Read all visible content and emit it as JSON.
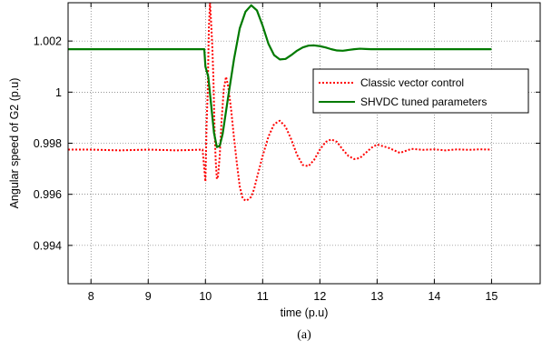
{
  "chart_data": {
    "type": "line",
    "xlabel": "time (p.u)",
    "ylabel": "Angular speed of G2 (p.u)",
    "caption": "(a)",
    "xlim": [
      7.6,
      15.85
    ],
    "ylim": [
      0.9925,
      1.0035
    ],
    "x_ticks": [
      "8",
      "9",
      "10",
      "11",
      "12",
      "13",
      "14",
      "15"
    ],
    "y_ticks": [
      "0.994",
      "0.996",
      "0.998",
      "1",
      "1.002"
    ],
    "x_tick_values": [
      8,
      9,
      10,
      11,
      12,
      13,
      14,
      15
    ],
    "y_tick_values": [
      0.994,
      0.996,
      0.998,
      1.0,
      1.002
    ],
    "grid": true,
    "legend_position": "top-right",
    "series": [
      {
        "name": "Classic vector control",
        "color": "#ff0000",
        "style": "dotted",
        "x": [
          7.6,
          8.0,
          8.5,
          9.0,
          9.5,
          9.95,
          10.0,
          10.02,
          10.04,
          10.06,
          10.08,
          10.1,
          10.12,
          10.14,
          10.16,
          10.18,
          10.2,
          10.22,
          10.25,
          10.28,
          10.32,
          10.36,
          10.4,
          10.45,
          10.5,
          10.55,
          10.6,
          10.65,
          10.7,
          10.75,
          10.8,
          10.85,
          10.9,
          11.0,
          11.1,
          11.2,
          11.3,
          11.4,
          11.5,
          11.6,
          11.7,
          11.8,
          11.9,
          12.0,
          12.1,
          12.2,
          12.3,
          12.4,
          12.5,
          12.6,
          12.7,
          12.8,
          12.9,
          13.0,
          13.2,
          13.4,
          13.6,
          13.8,
          14.0,
          14.2,
          14.4,
          14.6,
          14.8,
          15.0
        ],
        "y": [
          0.99775,
          0.99775,
          0.99772,
          0.99775,
          0.99772,
          0.99775,
          0.9965,
          0.9987,
          1.0,
          1.0025,
          1.0035,
          1.0027,
          1.0018,
          1.0005,
          0.9985,
          0.9973,
          0.9966,
          0.9967,
          0.9975,
          0.9988,
          1.0001,
          1.0006,
          1.0002,
          0.9993,
          0.9982,
          0.9972,
          0.9963,
          0.99585,
          0.99575,
          0.9958,
          0.9959,
          0.9962,
          0.99665,
          0.9975,
          0.99825,
          0.99875,
          0.99888,
          0.99865,
          0.99815,
          0.99755,
          0.99715,
          0.9971,
          0.99735,
          0.99775,
          0.99805,
          0.99815,
          0.99805,
          0.99775,
          0.9975,
          0.99738,
          0.99742,
          0.99762,
          0.99782,
          0.99795,
          0.99782,
          0.99762,
          0.99778,
          0.99774,
          0.99776,
          0.99772,
          0.99776,
          0.99774,
          0.99776,
          0.99775
        ]
      },
      {
        "name": "SHVDC tuned parameters",
        "color": "#007a00",
        "style": "solid",
        "x": [
          7.6,
          8.0,
          9.0,
          9.5,
          9.98,
          10.0,
          10.05,
          10.1,
          10.15,
          10.2,
          10.25,
          10.3,
          10.35,
          10.4,
          10.5,
          10.6,
          10.7,
          10.8,
          10.9,
          11.0,
          11.1,
          11.2,
          11.3,
          11.4,
          11.5,
          11.6,
          11.7,
          11.8,
          11.9,
          12.0,
          12.1,
          12.2,
          12.3,
          12.4,
          12.5,
          12.6,
          12.7,
          12.8,
          12.9,
          13.0,
          13.5,
          14.0,
          14.5,
          15.0
        ],
        "y": [
          1.00168,
          1.00168,
          1.00168,
          1.00168,
          1.00168,
          1.001,
          1.0006,
          0.9995,
          0.9984,
          0.99785,
          0.9979,
          0.99835,
          0.9991,
          0.99985,
          1.0013,
          1.0025,
          1.00315,
          1.0034,
          1.0032,
          1.0026,
          1.0019,
          1.00145,
          1.00128,
          1.0013,
          1.00145,
          1.00162,
          1.00175,
          1.00182,
          1.00183,
          1.0018,
          1.00175,
          1.00168,
          1.00163,
          1.00162,
          1.00165,
          1.00168,
          1.0017,
          1.00169,
          1.00168,
          1.00168,
          1.00168,
          1.00168,
          1.00168,
          1.00168
        ]
      }
    ]
  }
}
